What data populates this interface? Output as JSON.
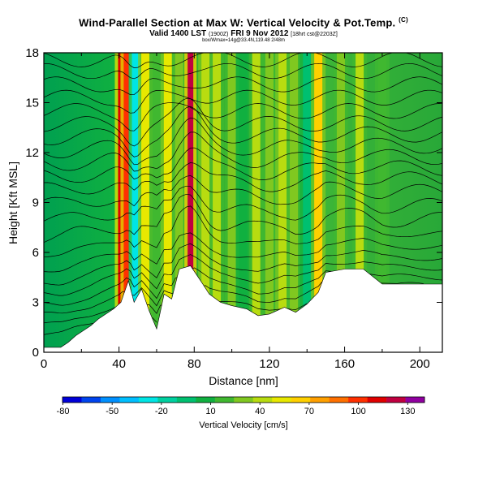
{
  "chart_data": {
    "type": "heatmap",
    "title": "Wind-Parallel Section at Max W: Vertical Velocity & Pot.Temp.",
    "title_mark": "(C)",
    "subtitle_main": "Valid 1400 LST",
    "subtitle_utc": "(1900Z)",
    "subtitle_date": "FRI 9 Nov 2012",
    "subtitle_init": "[18hrt cst@2203Z]",
    "subtitle2": "box/Wmax=14g@33.4N,119.48 2/48m",
    "xlabel": "Distance [nm]",
    "ylabel": "Height [Kft MSL]",
    "xlim": [
      0,
      212
    ],
    "ylim": [
      0,
      18
    ],
    "x_ticks": [
      0,
      40,
      80,
      120,
      160,
      200
    ],
    "x_minor_ticks": [
      20,
      60,
      100,
      140,
      180
    ],
    "y_ticks": [
      0,
      3,
      6,
      9,
      12,
      15,
      18
    ],
    "colorbar": {
      "label": "Vertical Velocity [cm/s]",
      "tick_labels": [
        "-80",
        "-50",
        "-20",
        "10",
        "40",
        "70",
        "100",
        "130"
      ],
      "colors": [
        "#0000d8",
        "#0044ee",
        "#0090ff",
        "#00bfff",
        "#00e5e5",
        "#00d0a0",
        "#00c070",
        "#10b040",
        "#40b830",
        "#80c820",
        "#b8dc10",
        "#e8e800",
        "#ffd000",
        "#ffa000",
        "#ff7000",
        "#ff3000",
        "#e00000",
        "#c00040",
        "#9000a0"
      ]
    },
    "velocity_columns": [
      {
        "x": 41,
        "value": 100
      },
      {
        "x": 44,
        "value": 85
      },
      {
        "x": 49,
        "value": -40
      },
      {
        "x": 54,
        "value": 40
      },
      {
        "x": 60,
        "value": 10
      },
      {
        "x": 66,
        "value": 40
      },
      {
        "x": 72,
        "value": 20
      },
      {
        "x": 78,
        "value": 110
      },
      {
        "x": 86,
        "value": 30
      },
      {
        "x": 92,
        "value": 25
      },
      {
        "x": 100,
        "value": 20
      },
      {
        "x": 106,
        "value": -10
      },
      {
        "x": 113,
        "value": 25
      },
      {
        "x": 120,
        "value": 15
      },
      {
        "x": 127,
        "value": 30
      },
      {
        "x": 133,
        "value": 20
      },
      {
        "x": 140,
        "value": -20
      },
      {
        "x": 146,
        "value": 55
      },
      {
        "x": 158,
        "value": 20
      },
      {
        "x": 168,
        "value": 25
      },
      {
        "x": 180,
        "value": 10
      }
    ],
    "terrain": [
      {
        "x": 0,
        "h": 0.3
      },
      {
        "x": 9,
        "h": 0.3
      },
      {
        "x": 13,
        "h": 0.6
      },
      {
        "x": 17,
        "h": 1.0
      },
      {
        "x": 21,
        "h": 1.3
      },
      {
        "x": 25,
        "h": 1.6
      },
      {
        "x": 29,
        "h": 2.0
      },
      {
        "x": 33,
        "h": 2.3
      },
      {
        "x": 37,
        "h": 2.6
      },
      {
        "x": 41,
        "h": 3.0
      },
      {
        "x": 45,
        "h": 4.3
      },
      {
        "x": 48,
        "h": 3.0
      },
      {
        "x": 52,
        "h": 3.8
      },
      {
        "x": 56,
        "h": 2.5
      },
      {
        "x": 60,
        "h": 1.4
      },
      {
        "x": 64,
        "h": 3.5
      },
      {
        "x": 68,
        "h": 3.2
      },
      {
        "x": 72,
        "h": 5.0
      },
      {
        "x": 78,
        "h": 5.2
      },
      {
        "x": 84,
        "h": 4.2
      },
      {
        "x": 88,
        "h": 3.5
      },
      {
        "x": 94,
        "h": 3.0
      },
      {
        "x": 100,
        "h": 2.8
      },
      {
        "x": 108,
        "h": 2.6
      },
      {
        "x": 114,
        "h": 2.2
      },
      {
        "x": 120,
        "h": 2.3
      },
      {
        "x": 128,
        "h": 2.7
      },
      {
        "x": 134,
        "h": 2.4
      },
      {
        "x": 140,
        "h": 2.9
      },
      {
        "x": 146,
        "h": 3.6
      },
      {
        "x": 150,
        "h": 4.8
      },
      {
        "x": 160,
        "h": 5.0
      },
      {
        "x": 170,
        "h": 5.0
      },
      {
        "x": 180,
        "h": 4.1
      },
      {
        "x": 212,
        "h": 4.1
      }
    ],
    "theta_contours": [
      0.9,
      1.5,
      2.1,
      2.7,
      3.4,
      4.1,
      4.9,
      5.8,
      6.8,
      7.8,
      8.8,
      9.7,
      10.5,
      11.3,
      12.1,
      12.9,
      13.7,
      14.5,
      15.3,
      16.1,
      16.9,
      17.6
    ]
  }
}
